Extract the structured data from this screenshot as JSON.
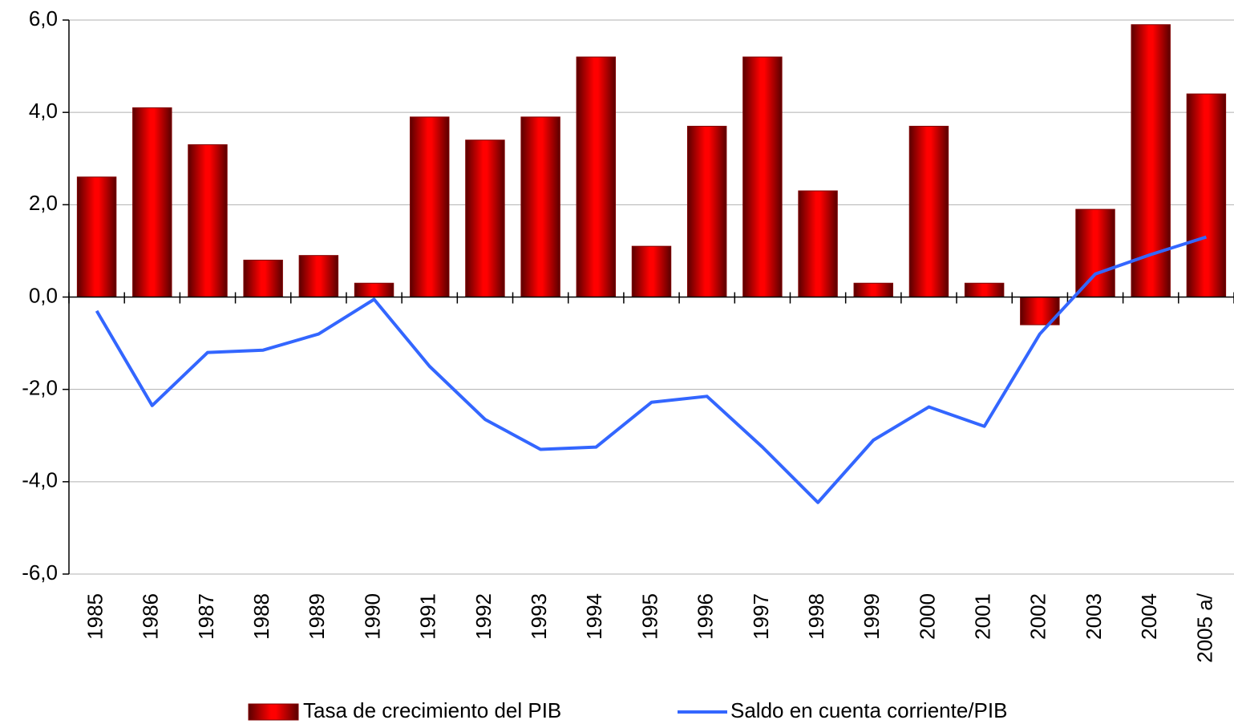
{
  "chart_data": {
    "type": "bar_line",
    "categories": [
      "1985",
      "1986",
      "1987",
      "1988",
      "1989",
      "1990",
      "1991",
      "1992",
      "1993",
      "1994",
      "1995",
      "1996",
      "1997",
      "1998",
      "1999",
      "2000",
      "2001",
      "2002",
      "2003",
      "2004",
      "2005 a/"
    ],
    "series": [
      {
        "name": "Tasa de crecimiento del PIB",
        "type": "bar",
        "color": "#ff0000",
        "values": [
          2.6,
          4.1,
          3.3,
          0.8,
          0.9,
          0.3,
          3.9,
          3.4,
          3.9,
          5.2,
          1.1,
          3.7,
          5.2,
          2.3,
          0.3,
          3.7,
          0.3,
          -0.6,
          1.9,
          5.9,
          4.4
        ]
      },
      {
        "name": "Saldo en cuenta corriente/PIB",
        "type": "line",
        "color": "#3366ff",
        "values": [
          -0.3,
          -2.35,
          -1.2,
          -1.15,
          -0.8,
          -0.05,
          -1.5,
          -2.65,
          -3.3,
          -3.25,
          -2.28,
          -2.15,
          -3.25,
          -4.45,
          -3.1,
          -2.38,
          -2.8,
          -0.8,
          0.5,
          0.92,
          1.3
        ]
      }
    ],
    "ylim": [
      -6,
      6
    ],
    "yticks": [
      {
        "value": -6,
        "label": "-6,0"
      },
      {
        "value": -4,
        "label": "-4,0"
      },
      {
        "value": -2,
        "label": "-2,0"
      },
      {
        "value": 0,
        "label": "0,0"
      },
      {
        "value": 2,
        "label": "2,0"
      },
      {
        "value": 4,
        "label": "4,0"
      },
      {
        "value": 6,
        "label": "6,0"
      }
    ],
    "grid": true,
    "legend": "bottom"
  }
}
